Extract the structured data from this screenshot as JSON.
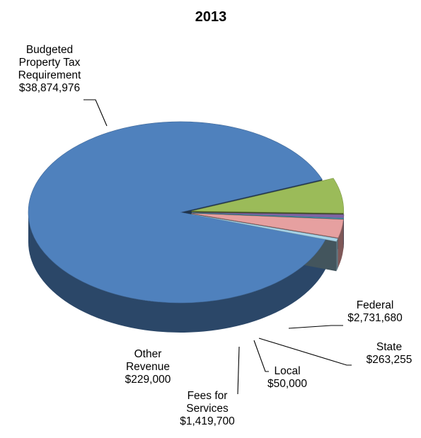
{
  "chart_data": {
    "type": "pie",
    "title": "2013",
    "style": "3d-exploded",
    "slices": [
      {
        "label": [
          "Budgeted",
          "Property Tax",
          "Requirement",
          "$38,874,976"
        ],
        "name": "Budgeted Property Tax Requirement",
        "value": 38874976,
        "color": "#4F81BD"
      },
      {
        "label": [
          "Federal",
          "$2,731,680"
        ],
        "name": "Federal",
        "value": 2731680,
        "color": "#9BBB59"
      },
      {
        "label": [
          "State",
          "$263,255"
        ],
        "name": "State",
        "value": 263255,
        "color": "#8064A2"
      },
      {
        "label": [
          "Local",
          "$50,000"
        ],
        "name": "Local",
        "value": 50000,
        "color": "#4BACC6"
      },
      {
        "label": [
          "Fees for",
          "Services",
          "$1,419,700"
        ],
        "name": "Fees for Services",
        "value": 1419700,
        "color": "#E6A0A0"
      },
      {
        "label": [
          "Other",
          "Revenue",
          "$229,000"
        ],
        "name": "Other Revenue",
        "value": 229000,
        "color": "#A8D4E8"
      }
    ]
  }
}
